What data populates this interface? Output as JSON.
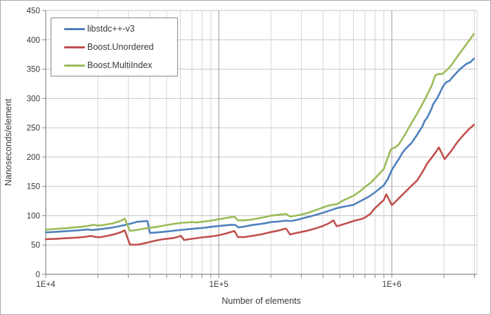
{
  "chart_data": {
    "type": "line",
    "title": "",
    "xlabel": "Number of elements",
    "ylabel": "Nanoseconds/element",
    "x_scale": "log",
    "xlim": [
      10000,
      3160000
    ],
    "ylim": [
      0,
      450
    ],
    "grid": true,
    "legend_position": "top-left",
    "y_ticks": [
      0,
      50,
      100,
      150,
      200,
      250,
      300,
      350,
      400,
      450
    ],
    "x_major_ticks": [
      {
        "value": 10000,
        "label": "1E+4"
      },
      {
        "value": 100000,
        "label": "1E+5"
      },
      {
        "value": 1000000,
        "label": "1E+6"
      }
    ],
    "x_minor_ticks": [
      20000,
      30000,
      40000,
      50000,
      60000,
      70000,
      80000,
      90000,
      200000,
      300000,
      400000,
      500000,
      600000,
      700000,
      800000,
      900000,
      2000000,
      3000000
    ],
    "series": [
      {
        "name": "libstdc++-v3",
        "color": "#4F81BD",
        "points": [
          [
            10000,
            71.5
          ],
          [
            11500,
            72.5
          ],
          [
            13000,
            73.5
          ],
          [
            14500,
            74.5
          ],
          [
            16000,
            75.5
          ],
          [
            17500,
            76.5
          ],
          [
            18500,
            75.5
          ],
          [
            20000,
            76.5
          ],
          [
            22000,
            78
          ],
          [
            24000,
            79.5
          ],
          [
            26000,
            81.5
          ],
          [
            28600,
            84
          ],
          [
            31000,
            86.5
          ],
          [
            33600,
            89.5
          ],
          [
            38700,
            91
          ],
          [
            40000,
            70.5
          ],
          [
            44000,
            71.5
          ],
          [
            48000,
            72.5
          ],
          [
            52000,
            73.5
          ],
          [
            57000,
            75
          ],
          [
            62000,
            76
          ],
          [
            67000,
            77
          ],
          [
            73000,
            78
          ],
          [
            80000,
            79
          ],
          [
            88000,
            80.5
          ],
          [
            100000,
            82.5
          ],
          [
            110000,
            83.5
          ],
          [
            118000,
            84.5
          ],
          [
            125000,
            84
          ],
          [
            130000,
            80
          ],
          [
            141000,
            81.5
          ],
          [
            155000,
            84
          ],
          [
            170000,
            85.5
          ],
          [
            185000,
            87
          ],
          [
            200000,
            89
          ],
          [
            220000,
            90
          ],
          [
            245000,
            91.5
          ],
          [
            260000,
            91
          ],
          [
            280000,
            92.5
          ],
          [
            310000,
            96
          ],
          [
            340000,
            99
          ],
          [
            370000,
            102
          ],
          [
            400000,
            105
          ],
          [
            430000,
            108
          ],
          [
            460000,
            111
          ],
          [
            490000,
            113.5
          ],
          [
            540000,
            116
          ],
          [
            600000,
            118.5
          ],
          [
            650000,
            124
          ],
          [
            700000,
            129
          ],
          [
            750000,
            134
          ],
          [
            800000,
            140
          ],
          [
            850000,
            146
          ],
          [
            900000,
            152
          ],
          [
            950000,
            163
          ],
          [
            1000000,
            178
          ],
          [
            1050000,
            188
          ],
          [
            1100000,
            197
          ],
          [
            1150000,
            207
          ],
          [
            1200000,
            214
          ],
          [
            1230000,
            217
          ],
          [
            1300000,
            224
          ],
          [
            1400000,
            238
          ],
          [
            1500000,
            252
          ],
          [
            1550000,
            262
          ],
          [
            1600000,
            267
          ],
          [
            1700000,
            283
          ],
          [
            1730000,
            290
          ],
          [
            1780000,
            295
          ],
          [
            1850000,
            303
          ],
          [
            1950000,
            317
          ],
          [
            2000000,
            323
          ],
          [
            2070000,
            328
          ],
          [
            2150000,
            330
          ],
          [
            2300000,
            340
          ],
          [
            2500000,
            351
          ],
          [
            2700000,
            359
          ],
          [
            2850000,
            362
          ],
          [
            2980000,
            368
          ]
        ]
      },
      {
        "name": "Boost.Unordered",
        "color": "#C0504D",
        "points": [
          [
            10000,
            60
          ],
          [
            11500,
            60.5
          ],
          [
            13000,
            61.5
          ],
          [
            15000,
            62.5
          ],
          [
            17000,
            64
          ],
          [
            18300,
            65.5
          ],
          [
            19500,
            63.5
          ],
          [
            21000,
            63.5
          ],
          [
            23000,
            66
          ],
          [
            25000,
            68.5
          ],
          [
            27000,
            71.5
          ],
          [
            28600,
            75
          ],
          [
            30700,
            50.5
          ],
          [
            34000,
            50.5
          ],
          [
            38000,
            53.5
          ],
          [
            43000,
            57.5
          ],
          [
            48000,
            60
          ],
          [
            55000,
            62
          ],
          [
            60500,
            65.5
          ],
          [
            63000,
            58.5
          ],
          [
            70000,
            60.5
          ],
          [
            80000,
            63
          ],
          [
            90000,
            64.5
          ],
          [
            100000,
            66.5
          ],
          [
            110000,
            69.5
          ],
          [
            123000,
            74
          ],
          [
            129000,
            63.5
          ],
          [
            141000,
            63.5
          ],
          [
            155000,
            65.5
          ],
          [
            175000,
            68
          ],
          [
            200000,
            72
          ],
          [
            220000,
            74.5
          ],
          [
            245000,
            78
          ],
          [
            258000,
            68
          ],
          [
            280000,
            70.5
          ],
          [
            320000,
            74
          ],
          [
            360000,
            78
          ],
          [
            400000,
            82.5
          ],
          [
            430000,
            86.5
          ],
          [
            460000,
            92
          ],
          [
            480000,
            82
          ],
          [
            520000,
            85
          ],
          [
            560000,
            88
          ],
          [
            600000,
            91
          ],
          [
            650000,
            93.5
          ],
          [
            680000,
            95
          ],
          [
            700000,
            97
          ],
          [
            750000,
            103
          ],
          [
            800000,
            113
          ],
          [
            850000,
            120
          ],
          [
            900000,
            127
          ],
          [
            930000,
            136.5
          ],
          [
            1000000,
            118
          ],
          [
            1050000,
            124
          ],
          [
            1100000,
            130
          ],
          [
            1200000,
            141
          ],
          [
            1300000,
            151
          ],
          [
            1400000,
            160
          ],
          [
            1500000,
            174
          ],
          [
            1600000,
            189
          ],
          [
            1700000,
            199
          ],
          [
            1800000,
            209
          ],
          [
            1870000,
            216.5
          ],
          [
            2020000,
            196.5
          ],
          [
            2200000,
            210
          ],
          [
            2400000,
            226
          ],
          [
            2600000,
            238
          ],
          [
            2800000,
            248
          ],
          [
            2980000,
            255
          ]
        ]
      },
      {
        "name": "Boost.MultiIndex",
        "color": "#9BBB59",
        "points": [
          [
            10000,
            76
          ],
          [
            11500,
            77.5
          ],
          [
            13000,
            78.5
          ],
          [
            14500,
            80
          ],
          [
            16000,
            81
          ],
          [
            17500,
            82.5
          ],
          [
            19000,
            84.5
          ],
          [
            20000,
            83
          ],
          [
            22000,
            84.5
          ],
          [
            24500,
            87
          ],
          [
            27000,
            91
          ],
          [
            28600,
            95
          ],
          [
            30700,
            74
          ],
          [
            34000,
            76
          ],
          [
            38000,
            78.5
          ],
          [
            43000,
            80.5
          ],
          [
            48000,
            83
          ],
          [
            55000,
            86
          ],
          [
            62000,
            88
          ],
          [
            70000,
            89
          ],
          [
            75000,
            88.5
          ],
          [
            80000,
            89.5
          ],
          [
            90000,
            91.5
          ],
          [
            100000,
            94
          ],
          [
            110000,
            96
          ],
          [
            123000,
            98.5
          ],
          [
            129000,
            92
          ],
          [
            141000,
            92
          ],
          [
            155000,
            93.5
          ],
          [
            170000,
            95.5
          ],
          [
            185000,
            97.5
          ],
          [
            200000,
            100
          ],
          [
            220000,
            101.5
          ],
          [
            245000,
            103
          ],
          [
            258000,
            98.5
          ],
          [
            280000,
            100
          ],
          [
            320000,
            104
          ],
          [
            360000,
            109
          ],
          [
            400000,
            114
          ],
          [
            430000,
            117
          ],
          [
            460000,
            119
          ],
          [
            480000,
            119.5
          ],
          [
            520000,
            125.5
          ],
          [
            560000,
            130
          ],
          [
            600000,
            134
          ],
          [
            650000,
            141
          ],
          [
            700000,
            149
          ],
          [
            760000,
            157
          ],
          [
            800000,
            164
          ],
          [
            850000,
            172
          ],
          [
            900000,
            180
          ],
          [
            930000,
            192
          ],
          [
            960000,
            203
          ],
          [
            980000,
            211
          ],
          [
            1000000,
            214.5
          ],
          [
            1050000,
            216.5
          ],
          [
            1100000,
            222
          ],
          [
            1200000,
            240
          ],
          [
            1300000,
            258
          ],
          [
            1400000,
            274
          ],
          [
            1500000,
            290
          ],
          [
            1600000,
            306
          ],
          [
            1700000,
            322
          ],
          [
            1780000,
            339
          ],
          [
            1820000,
            341
          ],
          [
            1970000,
            342
          ],
          [
            2100000,
            350
          ],
          [
            2200000,
            356
          ],
          [
            2400000,
            372
          ],
          [
            2600000,
            386
          ],
          [
            2800000,
            399
          ],
          [
            2980000,
            410
          ]
        ]
      }
    ],
    "colors": {
      "axis_line": "#888888",
      "major_gridline": "#9a9a9a",
      "minor_gridline": "#d4d4d4",
      "h_gridline": "#c6c6c6",
      "text": "#3a3a3a",
      "plot_background": "#ffffff"
    }
  }
}
